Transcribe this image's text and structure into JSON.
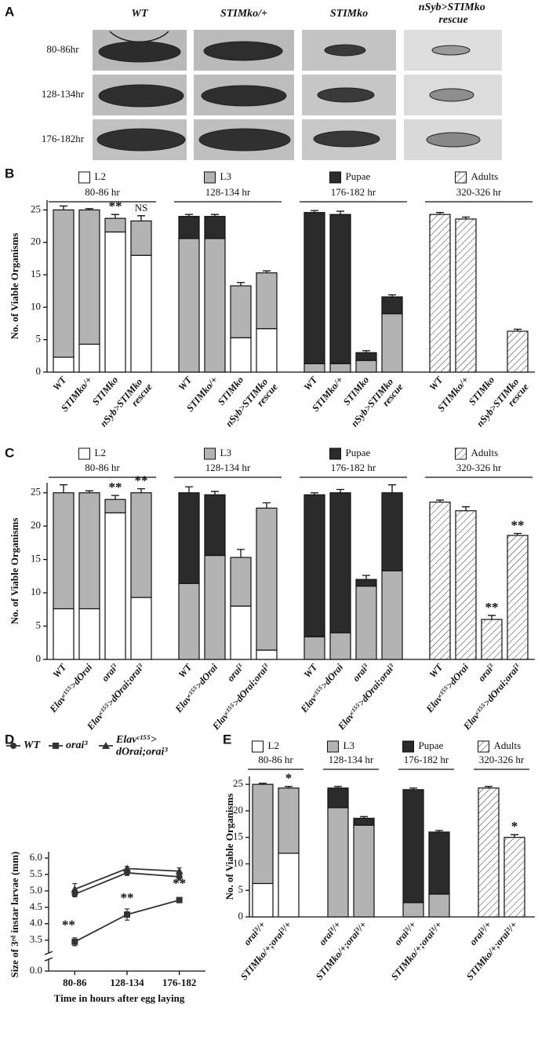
{
  "panel_a": {
    "label": "A",
    "columns": [
      "WT",
      "STIMko/+",
      "STIMko",
      "nSyb>STIMko rescue"
    ],
    "rows": [
      "80-86hr",
      "128-134hr",
      "176-182hr"
    ]
  },
  "chart_data": [
    {
      "panel": "B",
      "type": "stacked_bar",
      "ylabel": "No. of Viable Organisms",
      "ylim": [
        0,
        26.5
      ],
      "yticks": [
        0,
        5,
        10,
        15,
        20,
        25
      ],
      "group_titles": [
        "80-86 hr",
        "128-134 hr",
        "176-182 hr",
        "320-326 hr"
      ],
      "categories": [
        "WT",
        "STIMko/+",
        "STIMko",
        "nSyb>STIMko rescue",
        "WT",
        "STIMko/+",
        "STIMko",
        "nSyb>STIMko rescue",
        "WT",
        "STIMko/+",
        "STIMko",
        "nSyb>STIMko rescue",
        "WT",
        "STIMko/+",
        "STIMko",
        "nSyb>STIMko rescue"
      ],
      "series": [
        {
          "name": "L2",
          "color": "#ffffff",
          "values": [
            2.3,
            4.3,
            21.6,
            18.0,
            null,
            null,
            5.3,
            6.7,
            null,
            null,
            null,
            null,
            null,
            null,
            null,
            null
          ],
          "errors": [
            0.6,
            0.3,
            0.6,
            0.5,
            null,
            null,
            0.3,
            0.6,
            null,
            null,
            null,
            null,
            null,
            null,
            null,
            null
          ]
        },
        {
          "name": "L3",
          "color": "#b3b3b3",
          "values": [
            22.7,
            20.7,
            2.1,
            5.3,
            20.6,
            20.6,
            8.0,
            8.6,
            1.3,
            1.3,
            1.8,
            9.0,
            null,
            null,
            null,
            null
          ],
          "errors": [
            0.6,
            0.2,
            0.6,
            0.8,
            0.3,
            0.3,
            0.5,
            0.3,
            0.3,
            0.3,
            0.3,
            0.3,
            null,
            null,
            null,
            null
          ]
        },
        {
          "name": "Pupae",
          "color": "#2b2b2b",
          "values": [
            null,
            null,
            null,
            null,
            3.4,
            3.4,
            null,
            null,
            23.3,
            23.0,
            1.2,
            2.6,
            null,
            null,
            null,
            null
          ],
          "errors": [
            null,
            null,
            null,
            null,
            0.3,
            0.3,
            null,
            null,
            0.3,
            0.5,
            0.3,
            0.3,
            null,
            null,
            null,
            null
          ]
        },
        {
          "name": "Adults",
          "color": "#ffffff",
          "hatch": true,
          "values": [
            null,
            null,
            null,
            null,
            null,
            null,
            null,
            null,
            null,
            null,
            null,
            null,
            24.3,
            23.6,
            0,
            6.3
          ],
          "errors": [
            null,
            null,
            null,
            null,
            null,
            null,
            null,
            null,
            null,
            null,
            null,
            null,
            0.3,
            0.3,
            null,
            0.3
          ]
        }
      ],
      "annotations": [
        null,
        null,
        "**",
        "NS",
        null,
        null,
        null,
        null,
        null,
        null,
        null,
        null,
        null,
        null,
        null,
        null
      ]
    },
    {
      "panel": "C",
      "type": "stacked_bar",
      "ylabel": "No. of Viable Organisms",
      "ylim": [
        0,
        26.5
      ],
      "yticks": [
        0,
        5,
        10,
        15,
        20,
        25
      ],
      "group_titles": [
        "80-86 hr",
        "128-134 hr",
        "176-182 hr",
        "320-326 hr"
      ],
      "categories": [
        "WT",
        "Elavᶜ¹⁵⁵>dOrai",
        "orai³",
        "Elavᶜ¹⁵⁵>dOrai;orai³",
        "WT",
        "Elavᶜ¹⁵⁵>dOrai",
        "orai³",
        "Elavᶜ¹⁵⁵>dOrai;orai³",
        "WT",
        "Elavᶜ¹⁵⁵>dOrai",
        "orai³",
        "Elavᶜ¹⁵⁵>dOrai;orai³",
        "WT",
        "Elavᶜ¹⁵⁵>dOrai",
        "orai³",
        "Elavᶜ¹⁵⁵>dOrai;orai³"
      ],
      "series": [
        {
          "name": "L2",
          "color": "#ffffff",
          "values": [
            7.6,
            7.6,
            22.0,
            9.3,
            null,
            null,
            8.0,
            1.4,
            null,
            null,
            null,
            null,
            null,
            null,
            null,
            null
          ],
          "errors": [
            1.2,
            0.6,
            1.0,
            1.1,
            null,
            null,
            0.9,
            0.6,
            null,
            null,
            null,
            null,
            null,
            null,
            null,
            null
          ]
        },
        {
          "name": "L3",
          "color": "#b3b3b3",
          "values": [
            17.4,
            17.4,
            2.0,
            15.7,
            11.4,
            15.6,
            7.3,
            21.3,
            3.4,
            4.0,
            11.0,
            13.3,
            null,
            null,
            null,
            null
          ],
          "errors": [
            1.2,
            0.3,
            0.6,
            0.6,
            0.9,
            0.4,
            1.2,
            0.8,
            0.3,
            0.5,
            0.6,
            1.1,
            null,
            null,
            null,
            null
          ]
        },
        {
          "name": "Pupae",
          "color": "#2b2b2b",
          "values": [
            null,
            null,
            null,
            null,
            13.6,
            9.1,
            null,
            null,
            21.3,
            21.0,
            1.0,
            11.7,
            null,
            null,
            null,
            null
          ],
          "errors": [
            null,
            null,
            null,
            null,
            0.9,
            0.5,
            null,
            null,
            0.3,
            0.5,
            0.6,
            1.2,
            null,
            null,
            null,
            null
          ]
        },
        {
          "name": "Adults",
          "color": "#ffffff",
          "hatch": true,
          "values": [
            null,
            null,
            null,
            null,
            null,
            null,
            null,
            null,
            null,
            null,
            null,
            null,
            23.6,
            22.3,
            6.0,
            18.6
          ],
          "errors": [
            null,
            null,
            null,
            null,
            null,
            null,
            null,
            null,
            null,
            null,
            null,
            null,
            0.3,
            0.6,
            0.6,
            0.3
          ]
        }
      ],
      "annotations": [
        null,
        null,
        "**",
        "**",
        null,
        null,
        null,
        null,
        null,
        null,
        null,
        null,
        null,
        null,
        "**",
        "**"
      ]
    },
    {
      "panel": "D",
      "type": "line",
      "ylabel": "Size of 3ʳᵈ instar larvae (mm)",
      "xlabel": "Time in hours after egg laying",
      "categories": [
        "80-86",
        "128-134",
        "176-182"
      ],
      "ylim": [
        3.3,
        6.0
      ],
      "ybreak": true,
      "yticks": [
        {
          "value": 0,
          "label": "0.0"
        },
        {
          "value": 3.5,
          "label": "3.5"
        },
        {
          "value": 4,
          "label": "4.0"
        },
        4.5,
        {
          "value": 5,
          "label": "5.0"
        },
        5.5,
        {
          "value": 6,
          "label": "6.0"
        }
      ],
      "series": [
        {
          "name": "WT",
          "color": "#333333",
          "marker": "circle",
          "values": [
            4.9,
            5.55,
            5.43
          ],
          "errors": [
            0.08,
            0.08,
            0.1
          ]
        },
        {
          "name": "orai³",
          "color": "#333333",
          "marker": "square",
          "values": [
            3.45,
            4.28,
            4.72
          ],
          "errors": [
            0.12,
            0.17,
            0.08
          ],
          "annotations": [
            "**",
            "**",
            "**"
          ]
        },
        {
          "name": "Elavᶜ¹⁵⁵>dOrai;orai³",
          "color": "#333333",
          "marker": "triangle",
          "values": [
            5.05,
            5.68,
            5.6
          ],
          "errors": [
            0.17,
            0.06,
            0.1
          ]
        }
      ]
    },
    {
      "panel": "E",
      "type": "stacked_bar",
      "ylabel": "No. of Viable Organisms",
      "ylim": [
        0,
        26.5
      ],
      "yticks": [
        0,
        5,
        10,
        15,
        20,
        25
      ],
      "group_titles": [
        "80-86 hr",
        "128-134 hr",
        "176-182 hr",
        "320-326 hr"
      ],
      "categories": [
        "orai³/+",
        "STIMko/+;orai³/+",
        "orai³/+",
        "STIMko/+;orai³/+",
        "orai³/+",
        "STIMko/+;orai³/+",
        "orai³/+",
        "STIMko/+;orai³/+"
      ],
      "series": [
        {
          "name": "L2",
          "color": "#ffffff",
          "values": [
            6.3,
            12.0,
            null,
            null,
            null,
            null,
            null,
            null
          ],
          "errors": [
            0.3,
            0.5,
            null,
            null,
            null,
            null,
            null,
            null
          ]
        },
        {
          "name": "L3",
          "color": "#b3b3b3",
          "values": [
            18.7,
            12.3,
            20.6,
            17.3,
            2.7,
            4.3,
            null,
            null
          ],
          "errors": [
            0.2,
            0.3,
            0.3,
            0.3,
            0.2,
            0.3,
            null,
            null
          ]
        },
        {
          "name": "Pupae",
          "color": "#2b2b2b",
          "values": [
            null,
            null,
            3.7,
            1.3,
            21.3,
            11.7,
            null,
            null
          ],
          "errors": [
            null,
            null,
            0.3,
            0.3,
            0.3,
            0.3,
            null,
            null
          ]
        },
        {
          "name": "Adults",
          "color": "#ffffff",
          "hatch": true,
          "values": [
            null,
            null,
            null,
            null,
            null,
            null,
            24.3,
            15.0
          ],
          "errors": [
            null,
            null,
            null,
            null,
            null,
            null,
            0.3,
            0.5
          ]
        }
      ],
      "annotations": [
        null,
        "*",
        null,
        null,
        null,
        null,
        null,
        "*"
      ]
    }
  ]
}
